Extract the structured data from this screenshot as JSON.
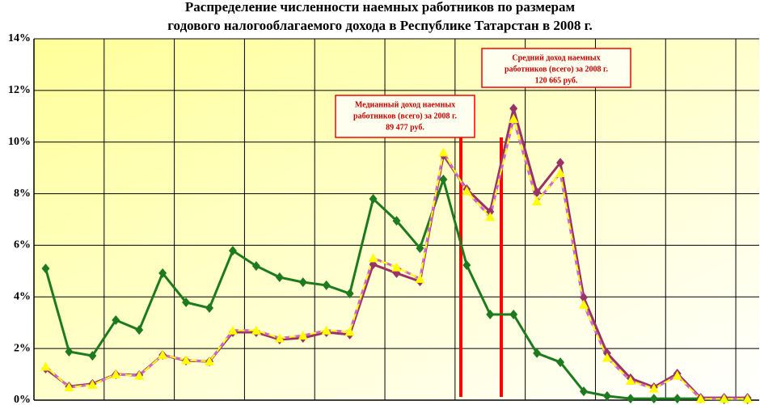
{
  "chart_data": {
    "type": "line",
    "title": [
      "Распределение численности наемных работников по размерам",
      "годового налогооблагаемого дохода в Республике Татарстан в 2008 г."
    ],
    "categories": [
      null,
      null,
      null,
      null,
      null,
      null,
      null,
      null,
      null,
      null,
      null,
      null,
      null,
      null,
      null,
      null,
      null,
      null,
      null,
      null,
      null,
      null,
      null,
      null,
      null,
      null,
      null,
      null,
      null,
      null,
      null
    ],
    "series": [
      {
        "color": "#1e7a1e",
        "marker": "diamond",
        "dashed": false,
        "values": [
          5.1,
          1.88,
          1.72,
          3.1,
          2.72,
          4.92,
          3.79,
          3.57,
          5.79,
          5.2,
          4.76,
          4.57,
          4.45,
          4.13,
          7.8,
          6.95,
          5.89,
          8.55,
          5.23,
          3.32,
          3.32,
          1.82,
          1.47,
          0.34,
          0.16,
          0.06,
          0.06,
          0.06,
          0.06,
          0.03,
          0.03
        ]
      },
      {
        "color": "#993366",
        "marker": "diamond",
        "dashed": false,
        "values": [
          1.22,
          0.53,
          0.63,
          1.0,
          0.97,
          1.75,
          1.53,
          1.5,
          2.63,
          2.63,
          2.35,
          2.41,
          2.63,
          2.54,
          5.26,
          4.92,
          4.6,
          9.49,
          8.17,
          7.3,
          11.3,
          8.05,
          9.2,
          3.98,
          1.82,
          0.85,
          0.5,
          1.03,
          0.09,
          0.09,
          0.09
        ]
      },
      {
        "color": "#ffff00",
        "marker": "triangle",
        "dashed": true,
        "values": [
          1.3,
          0.5,
          0.6,
          1.0,
          0.95,
          1.75,
          1.55,
          1.5,
          2.7,
          2.7,
          2.4,
          2.5,
          2.7,
          2.65,
          5.5,
          5.15,
          4.7,
          9.6,
          8.1,
          7.1,
          10.9,
          7.7,
          8.8,
          3.7,
          1.65,
          0.75,
          0.45,
          0.95,
          0.05,
          0.05,
          0.05
        ]
      }
    ],
    "ylim": [
      0,
      14
    ],
    "yticks": [
      {
        "value": 0,
        "label": "0%"
      },
      {
        "value": 2,
        "label": "2%"
      },
      {
        "value": 4,
        "label": "4%"
      },
      {
        "value": 6,
        "label": "6%"
      },
      {
        "value": 8,
        "label": "8%"
      },
      {
        "value": 10,
        "label": "10%"
      },
      {
        "value": 12,
        "label": "12%"
      },
      {
        "value": 14,
        "label": "14%"
      }
    ],
    "grid": true,
    "annotations": [
      {
        "lines": [
          "Медианный доход наемных",
          "работников (всего) за 2008 г.",
          "89 477 руб."
        ]
      },
      {
        "lines": [
          "Средний доход наемных",
          "работников (всего) за 2008 г.",
          "120 665 руб."
        ]
      }
    ]
  }
}
